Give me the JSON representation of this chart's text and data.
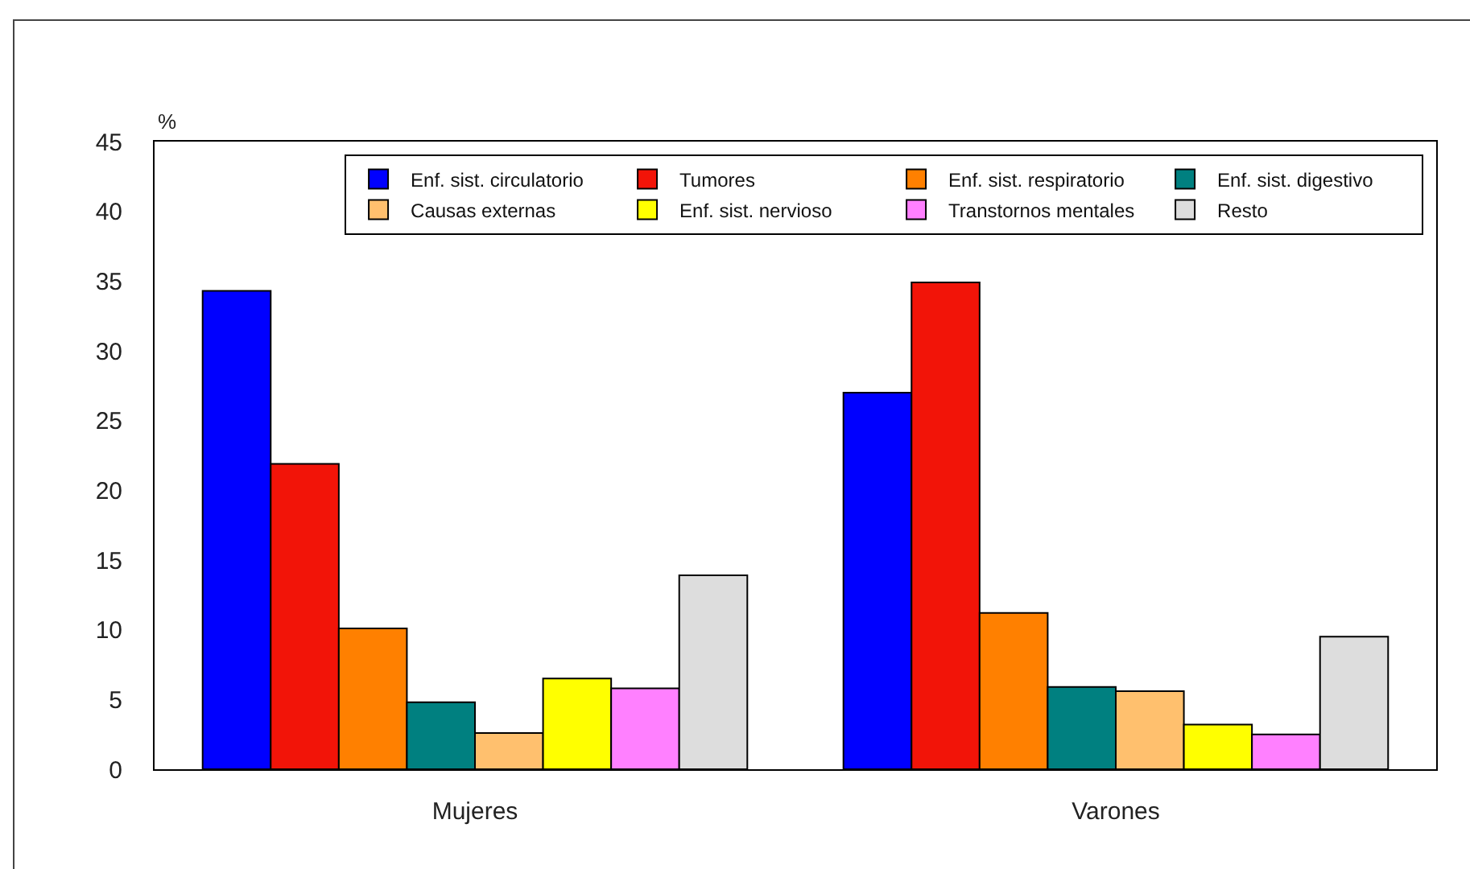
{
  "chart_data": {
    "type": "bar",
    "ylabel": "%",
    "categories": [
      "Mujeres",
      "Varones"
    ],
    "series": [
      {
        "name": "Enf. sist. circulatorio",
        "color": "#0000ff",
        "values": [
          34.3,
          27.0
        ]
      },
      {
        "name": "Tumores",
        "color": "#f21408",
        "values": [
          21.9,
          34.9
        ]
      },
      {
        "name": "Enf. sist. respiratorio",
        "color": "#ff8000",
        "values": [
          10.1,
          11.2
        ]
      },
      {
        "name": "Enf. sist. digestivo",
        "color": "#008080",
        "values": [
          4.8,
          5.9
        ]
      },
      {
        "name": "Causas externas",
        "color": "#ffc06e",
        "values": [
          2.6,
          5.6
        ]
      },
      {
        "name": "Enf. sist. nervioso",
        "color": "#ffff00",
        "values": [
          6.5,
          3.2
        ]
      },
      {
        "name": "Transtornos mentales",
        "color": "#ff80ff",
        "values": [
          5.8,
          2.5
        ]
      },
      {
        "name": "Resto",
        "color": "#dddddd",
        "values": [
          13.9,
          9.5
        ]
      }
    ],
    "ylim": [
      0,
      45
    ],
    "yticks": [
      0,
      5,
      10,
      15,
      20,
      25,
      30,
      35,
      40,
      45
    ],
    "legend": "top right"
  }
}
